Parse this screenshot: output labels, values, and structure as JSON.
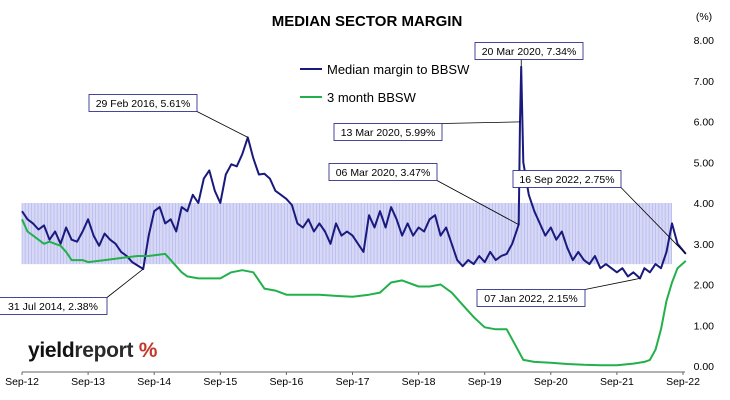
{
  "chart_data": {
    "type": "line",
    "title": "MEDIAN SECTOR MARGIN",
    "y_unit_label": "(%)",
    "ylim": [
      0,
      8
    ],
    "y_ticks": [
      "0.00",
      "1.00",
      "2.00",
      "3.00",
      "4.00",
      "5.00",
      "6.00",
      "7.00",
      "8.00"
    ],
    "x_ticks": [
      "Sep-12",
      "Sep-13",
      "Sep-14",
      "Sep-15",
      "Sep-16",
      "Sep-17",
      "Sep-18",
      "Sep-19",
      "Sep-20",
      "Sep-21",
      "Sep-22"
    ],
    "band_range": [
      2.5,
      4.0
    ],
    "series": [
      {
        "name": "Median margin to BBSW",
        "color": "#1a1a7e",
        "points": [
          [
            "Sep-12",
            3.8
          ],
          [
            "Oct-12",
            3.6
          ],
          [
            "Nov-12",
            3.5
          ],
          [
            "Dec-12",
            3.35
          ],
          [
            "Jan-13",
            3.45
          ],
          [
            "Feb-13",
            3.1
          ],
          [
            "Mar-13",
            3.3
          ],
          [
            "Apr-13",
            3.0
          ],
          [
            "May-13",
            3.4
          ],
          [
            "Jun-13",
            3.1
          ],
          [
            "Jul-13",
            3.05
          ],
          [
            "Aug-13",
            3.3
          ],
          [
            "Sep-13",
            3.6
          ],
          [
            "Oct-13",
            3.2
          ],
          [
            "Nov-13",
            2.95
          ],
          [
            "Dec-13",
            3.25
          ],
          [
            "Jan-14",
            3.1
          ],
          [
            "Feb-14",
            3.0
          ],
          [
            "Mar-14",
            2.8
          ],
          [
            "Apr-14",
            2.7
          ],
          [
            "May-14",
            2.55
          ],
          [
            "Jul-14",
            2.38
          ],
          [
            "Aug-14",
            3.2
          ],
          [
            "Sep-14",
            3.8
          ],
          [
            "Oct-14",
            3.9
          ],
          [
            "Nov-14",
            3.5
          ],
          [
            "Dec-14",
            3.6
          ],
          [
            "Jan-15",
            3.3
          ],
          [
            "Feb-15",
            3.9
          ],
          [
            "Mar-15",
            3.8
          ],
          [
            "Apr-15",
            4.2
          ],
          [
            "May-15",
            4.0
          ],
          [
            "Jun-15",
            4.6
          ],
          [
            "Jul-15",
            4.8
          ],
          [
            "Aug-15",
            4.3
          ],
          [
            "Sep-15",
            4.0
          ],
          [
            "Oct-15",
            4.7
          ],
          [
            "Nov-15",
            4.95
          ],
          [
            "Dec-15",
            4.9
          ],
          [
            "Jan-16",
            5.2
          ],
          [
            "Feb-16",
            5.61
          ],
          [
            "Mar-16",
            5.1
          ],
          [
            "Apr-16",
            4.7
          ],
          [
            "May-16",
            4.72
          ],
          [
            "Jun-16",
            4.6
          ],
          [
            "Jul-16",
            4.3
          ],
          [
            "Aug-16",
            4.2
          ],
          [
            "Sep-16",
            4.1
          ],
          [
            "Oct-16",
            3.95
          ],
          [
            "Nov-16",
            3.5
          ],
          [
            "Dec-16",
            3.4
          ],
          [
            "Jan-17",
            3.6
          ],
          [
            "Feb-17",
            3.3
          ],
          [
            "Mar-17",
            3.5
          ],
          [
            "Apr-17",
            3.3
          ],
          [
            "May-17",
            3.0
          ],
          [
            "Jun-17",
            3.5
          ],
          [
            "Jul-17",
            3.2
          ],
          [
            "Aug-17",
            3.3
          ],
          [
            "Sep-17",
            3.2
          ],
          [
            "Oct-17",
            3.0
          ],
          [
            "Nov-17",
            2.8
          ],
          [
            "Dec-17",
            3.7
          ],
          [
            "Jan-18",
            3.4
          ],
          [
            "Feb-18",
            3.8
          ],
          [
            "Mar-18",
            3.4
          ],
          [
            "Apr-18",
            3.9
          ],
          [
            "May-18",
            3.6
          ],
          [
            "Jun-18",
            3.2
          ],
          [
            "Jul-18",
            3.5
          ],
          [
            "Aug-18",
            3.2
          ],
          [
            "Sep-18",
            3.4
          ],
          [
            "Oct-18",
            3.3
          ],
          [
            "Nov-18",
            3.6
          ],
          [
            "Dec-18",
            3.7
          ],
          [
            "Jan-19",
            3.2
          ],
          [
            "Feb-19",
            3.4
          ],
          [
            "Mar-19",
            3.0
          ],
          [
            "Apr-19",
            2.6
          ],
          [
            "May-19",
            2.45
          ],
          [
            "Jun-19",
            2.6
          ],
          [
            "Jul-19",
            2.5
          ],
          [
            "Aug-19",
            2.7
          ],
          [
            "Sep-19",
            2.55
          ],
          [
            "Oct-19",
            2.8
          ],
          [
            "Nov-19",
            2.6
          ],
          [
            "Dec-19",
            2.7
          ],
          [
            "Jan-20",
            2.75
          ],
          [
            "Feb-20",
            3.0
          ],
          [
            "06 Mar 2020",
            3.47
          ],
          [
            "13 Mar 2020",
            5.99
          ],
          [
            "20 Mar 2020",
            7.34
          ],
          [
            "Apr-20",
            5.0
          ],
          [
            "May-20",
            4.2
          ],
          [
            "Jun-20",
            3.8
          ],
          [
            "Jul-20",
            3.5
          ],
          [
            "Aug-20",
            3.2
          ],
          [
            "Sep-20",
            3.4
          ],
          [
            "Oct-20",
            3.1
          ],
          [
            "Nov-20",
            3.3
          ],
          [
            "Dec-20",
            2.9
          ],
          [
            "Jan-21",
            2.6
          ],
          [
            "Feb-21",
            2.8
          ],
          [
            "Mar-21",
            2.6
          ],
          [
            "Apr-21",
            2.5
          ],
          [
            "May-21",
            2.7
          ],
          [
            "Jun-21",
            2.4
          ],
          [
            "Jul-21",
            2.5
          ],
          [
            "Aug-21",
            2.4
          ],
          [
            "Sep-21",
            2.3
          ],
          [
            "Oct-21",
            2.4
          ],
          [
            "Nov-21",
            2.2
          ],
          [
            "Dec-21",
            2.3
          ],
          [
            "07 Jan 2022",
            2.15
          ],
          [
            "Feb-22",
            2.4
          ],
          [
            "Mar-22",
            2.3
          ],
          [
            "Apr-22",
            2.5
          ],
          [
            "May-22",
            2.4
          ],
          [
            "Jun-22",
            2.8
          ],
          [
            "Jul-22",
            3.5
          ],
          [
            "Aug-22",
            3.0
          ],
          [
            "16 Sep 2022",
            2.75
          ]
        ]
      },
      {
        "name": "3 month BBSW",
        "color": "#22b04a",
        "points": [
          [
            "Sep-12",
            3.6
          ],
          [
            "Oct-12",
            3.3
          ],
          [
            "Nov-12",
            3.2
          ],
          [
            "Dec-12",
            3.1
          ],
          [
            "Jan-13",
            3.0
          ],
          [
            "Feb-13",
            3.05
          ],
          [
            "Mar-13",
            3.0
          ],
          [
            "Apr-13",
            2.95
          ],
          [
            "May-13",
            2.8
          ],
          [
            "Jun-13",
            2.6
          ],
          [
            "Aug-13",
            2.6
          ],
          [
            "Sep-13",
            2.55
          ],
          [
            "Dec-13",
            2.6
          ],
          [
            "Mar-14",
            2.65
          ],
          [
            "Jun-14",
            2.7
          ],
          [
            "Aug-14",
            2.7
          ],
          [
            "Nov-14",
            2.75
          ],
          [
            "Jan-15",
            2.45
          ],
          [
            "Feb-15",
            2.3
          ],
          [
            "Mar-15",
            2.2
          ],
          [
            "May-15",
            2.15
          ],
          [
            "Jul-15",
            2.15
          ],
          [
            "Sep-15",
            2.15
          ],
          [
            "Nov-15",
            2.3
          ],
          [
            "Jan-16",
            2.35
          ],
          [
            "Mar-16",
            2.3
          ],
          [
            "Apr-16",
            2.1
          ],
          [
            "May-16",
            1.9
          ],
          [
            "Jul-16",
            1.85
          ],
          [
            "Sep-16",
            1.75
          ],
          [
            "Nov-16",
            1.75
          ],
          [
            "Jan-17",
            1.75
          ],
          [
            "Mar-17",
            1.75
          ],
          [
            "Jun-17",
            1.72
          ],
          [
            "Sep-17",
            1.7
          ],
          [
            "Dec-17",
            1.75
          ],
          [
            "Feb-18",
            1.8
          ],
          [
            "Apr-18",
            2.05
          ],
          [
            "Jun-18",
            2.1
          ],
          [
            "Sep-18",
            1.95
          ],
          [
            "Nov-18",
            1.95
          ],
          [
            "Jan-19",
            2.0
          ],
          [
            "Mar-19",
            1.8
          ],
          [
            "May-19",
            1.5
          ],
          [
            "Jul-19",
            1.2
          ],
          [
            "Sep-19",
            0.95
          ],
          [
            "Nov-19",
            0.9
          ],
          [
            "Jan-20",
            0.9
          ],
          [
            "Mar-20",
            0.4
          ],
          [
            "Apr-20",
            0.15
          ],
          [
            "Jun-20",
            0.1
          ],
          [
            "Sep-20",
            0.08
          ],
          [
            "Dec-20",
            0.05
          ],
          [
            "Mar-21",
            0.03
          ],
          [
            "Jun-21",
            0.02
          ],
          [
            "Sep-21",
            0.02
          ],
          [
            "Dec-21",
            0.06
          ],
          [
            "Feb-22",
            0.1
          ],
          [
            "Mar-22",
            0.15
          ],
          [
            "Apr-22",
            0.4
          ],
          [
            "May-22",
            0.9
          ],
          [
            "Jun-22",
            1.6
          ],
          [
            "Jul-22",
            2.05
          ],
          [
            "Aug-22",
            2.4
          ],
          [
            "16 Sep 2022",
            2.58
          ]
        ]
      }
    ],
    "annotations": [
      {
        "label": "31 Jul 2014,  2.38%",
        "x": "Jul-14",
        "y": 2.38
      },
      {
        "label": "29 Feb 2016,  5.61%",
        "x": "Feb-16",
        "y": 5.61
      },
      {
        "label": "06 Mar 2020,  3.47%",
        "x": "06 Mar 2020",
        "y": 3.47
      },
      {
        "label": "13 Mar 2020,  5.99%",
        "x": "13 Mar 2020",
        "y": 5.99
      },
      {
        "label": "20 Mar 2020,  7.34%",
        "x": "20 Mar 2020",
        "y": 7.34
      },
      {
        "label": "07 Jan 2022,  2.15%",
        "x": "07 Jan 2022",
        "y": 2.15
      },
      {
        "label": "16 Sep 2022,  2.75%",
        "x": "16 Sep 2022",
        "y": 2.75
      }
    ],
    "legend_position": "top-center",
    "grid": false
  },
  "logo": {
    "part1": "yield",
    "part2": "report",
    "symbol": "%"
  }
}
